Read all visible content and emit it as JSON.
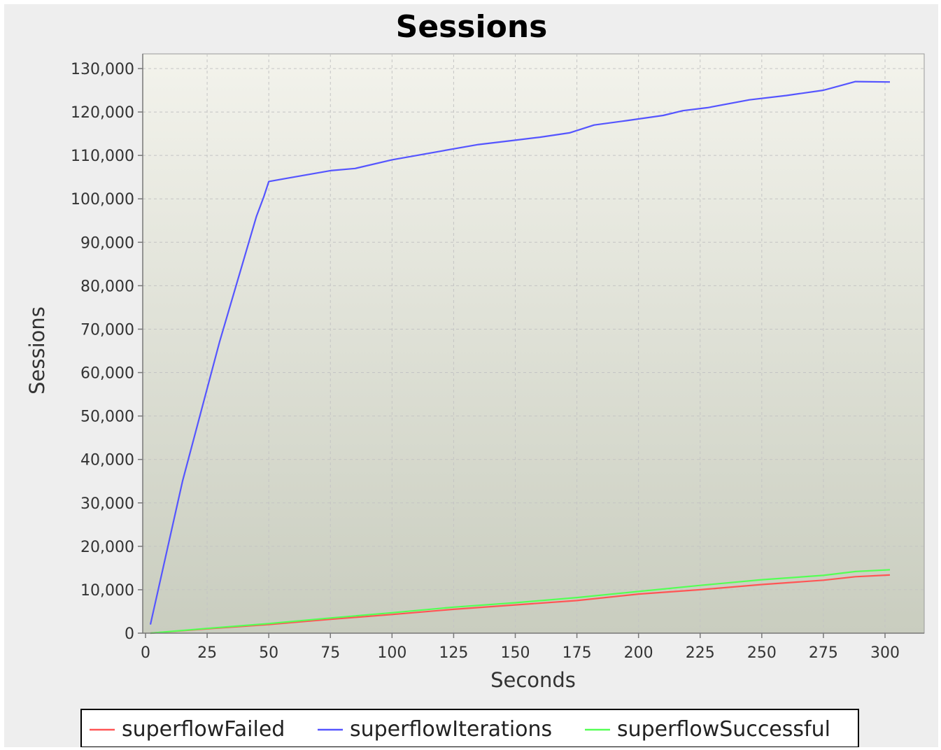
{
  "chart_data": {
    "type": "line",
    "title": "Sessions",
    "xlabel": "Seconds",
    "ylabel": "Sessions",
    "xlim": [
      0,
      316
    ],
    "ylim": [
      0,
      134000
    ],
    "x_ticks": [
      0,
      25,
      50,
      75,
      100,
      125,
      150,
      175,
      200,
      225,
      250,
      275,
      300
    ],
    "y_ticks": [
      0,
      10000,
      20000,
      30000,
      40000,
      50000,
      60000,
      70000,
      80000,
      90000,
      100000,
      110000,
      120000,
      130000
    ],
    "x_tick_labels": [
      "0",
      "25",
      "50",
      "75",
      "100",
      "125",
      "150",
      "175",
      "200",
      "225",
      "250",
      "275",
      "300"
    ],
    "y_tick_labels": [
      "0",
      "10,000",
      "20,000",
      "30,000",
      "40,000",
      "50,000",
      "60,000",
      "70,000",
      "80,000",
      "90,000",
      "100,000",
      "110,000",
      "120,000",
      "130,000"
    ],
    "grid": true,
    "legend_position": "bottom",
    "series": [
      {
        "name": "superflowFailed",
        "color": "#ff5555",
        "x": [
          2,
          25,
          50,
          75,
          100,
          125,
          150,
          175,
          200,
          225,
          250,
          275,
          288,
          302
        ],
        "y": [
          0,
          1000,
          2000,
          3200,
          4300,
          5500,
          6500,
          7500,
          9000,
          10000,
          11200,
          12200,
          13000,
          13400
        ]
      },
      {
        "name": "superflowIterations",
        "color": "#5555ff",
        "x": [
          2,
          15,
          30,
          45,
          48,
          50,
          60,
          75,
          85,
          100,
          120,
          135,
          150,
          160,
          172,
          182,
          195,
          210,
          218,
          228,
          245,
          260,
          275,
          288,
          302
        ],
        "y": [
          2000,
          35000,
          67000,
          96000,
          100500,
          104000,
          105000,
          106500,
          107000,
          109000,
          111000,
          112500,
          113500,
          114200,
          115200,
          117000,
          118000,
          119200,
          120300,
          121000,
          122800,
          123800,
          125000,
          127000,
          126900
        ]
      },
      {
        "name": "superflowSuccessful",
        "color": "#55ff55",
        "x": [
          2,
          25,
          50,
          75,
          100,
          125,
          150,
          175,
          200,
          225,
          250,
          275,
          288,
          302
        ],
        "y": [
          0,
          1100,
          2200,
          3500,
          4700,
          6000,
          7000,
          8200,
          9600,
          11000,
          12300,
          13300,
          14200,
          14600
        ]
      }
    ]
  }
}
